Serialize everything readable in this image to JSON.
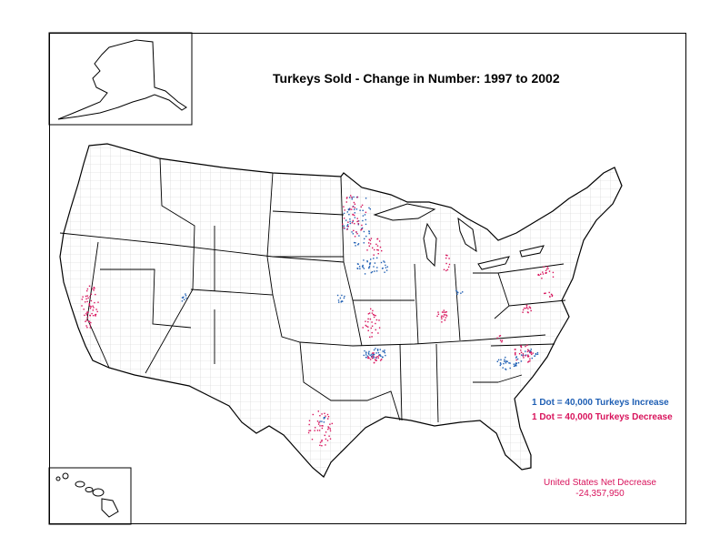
{
  "title": "Turkeys Sold - Change in Number:  1997 to 2002",
  "legend": {
    "increase": {
      "label": "1 Dot = 40,000 Turkeys Increase",
      "color": "#1f5fb4"
    },
    "decrease": {
      "label": "1 Dot = 40,000 Turkeys Decrease",
      "color": "#d8125b"
    }
  },
  "net": {
    "label": "United States Net Decrease",
    "value": "-24,357,950",
    "color": "#d8125b"
  },
  "colors": {
    "outline": "#000000",
    "county_lines": "#c8c8c8",
    "background": "#ffffff"
  }
}
